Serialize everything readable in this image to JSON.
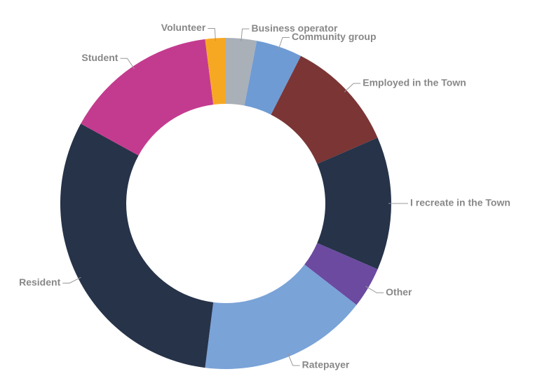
{
  "chart_data": {
    "type": "donut",
    "categories": [
      "Business operator",
      "Community group",
      "Employed in the Town",
      "I recreate in the Town",
      "Other",
      "Ratepayer",
      "Resident",
      "Student",
      "Volunteer"
    ],
    "values": [
      3,
      4.5,
      11,
      13,
      4,
      16.5,
      31,
      15,
      2
    ],
    "colors": [
      "#a9b0b8",
      "#6f9bd4",
      "#7b3535",
      "#263349",
      "#6b4aa0",
      "#7aa3d8",
      "#263349",
      "#c33b8f",
      "#f7a823"
    ]
  }
}
